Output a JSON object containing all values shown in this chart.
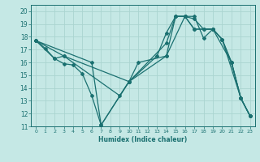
{
  "title": "",
  "xlabel": "Humidex (Indice chaleur)",
  "xlim": [
    -0.5,
    23.5
  ],
  "ylim": [
    11,
    20.5
  ],
  "yticks": [
    11,
    12,
    13,
    14,
    15,
    16,
    17,
    18,
    19,
    20
  ],
  "xticks": [
    0,
    1,
    2,
    3,
    4,
    5,
    6,
    7,
    8,
    9,
    10,
    11,
    12,
    13,
    14,
    15,
    16,
    17,
    18,
    19,
    20,
    21,
    22,
    23
  ],
  "bg_color": "#c5e8e5",
  "grid_color": "#aad4d0",
  "line_color": "#1a7070",
  "lines": [
    {
      "x": [
        0,
        1,
        2,
        3,
        4,
        5,
        6,
        7,
        10,
        11,
        14,
        15,
        16,
        17,
        18,
        19,
        20,
        21,
        22,
        23
      ],
      "y": [
        17.7,
        17.1,
        16.3,
        15.9,
        15.8,
        15.1,
        13.4,
        11.1,
        14.5,
        16.0,
        16.5,
        19.6,
        19.6,
        19.6,
        17.9,
        18.6,
        17.8,
        16.0,
        13.2,
        11.8
      ]
    },
    {
      "x": [
        0,
        2,
        3,
        10,
        14,
        15,
        16,
        17,
        19,
        21,
        22,
        23
      ],
      "y": [
        17.7,
        16.3,
        16.5,
        14.5,
        17.5,
        19.6,
        19.6,
        18.6,
        18.6,
        16.0,
        13.2,
        11.8
      ]
    },
    {
      "x": [
        0,
        3,
        9,
        10,
        13,
        14,
        15,
        16,
        17,
        18,
        19,
        20,
        22,
        23
      ],
      "y": [
        17.7,
        16.5,
        13.4,
        14.5,
        16.5,
        18.3,
        19.6,
        19.6,
        18.6,
        18.6,
        18.6,
        17.8,
        13.2,
        11.8
      ]
    },
    {
      "x": [
        0,
        6,
        7,
        10,
        14,
        16,
        17,
        18,
        19,
        20,
        21,
        22,
        23
      ],
      "y": [
        17.7,
        16.0,
        11.1,
        14.5,
        16.5,
        19.6,
        19.4,
        18.6,
        18.6,
        17.8,
        16.0,
        13.2,
        11.8
      ]
    }
  ]
}
